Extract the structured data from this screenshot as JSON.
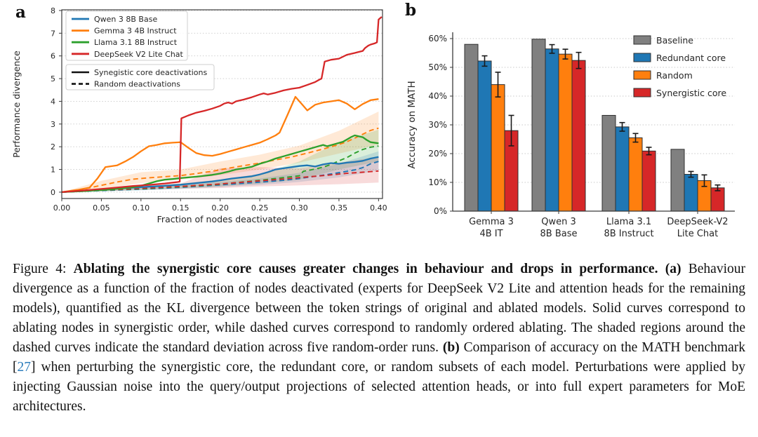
{
  "figure": {
    "panel_a_letter": "a",
    "panel_b_letter": "b"
  },
  "colors": {
    "blue": "#1f77b4",
    "orange": "#ff7f0e",
    "green": "#2ca02c",
    "red": "#d62728",
    "gray": "#808080",
    "grid": "#c9c9c9",
    "spine": "#3b3b3b",
    "tick_text": "#262626",
    "citation": "#2e7ebc",
    "band_opacity": 0.17
  },
  "chart_data": [
    {
      "type": "line",
      "panel": "a",
      "xlabel": "Fraction of nodes deactivated",
      "ylabel": "Performance divergence",
      "xlim": [
        0,
        0.405
      ],
      "ylim": [
        -0.28,
        8.03
      ],
      "xticks": [
        0.0,
        0.05,
        0.1,
        0.15,
        0.2,
        0.25,
        0.3,
        0.35,
        0.4
      ],
      "yticks": [
        0,
        1,
        2,
        3,
        4,
        5,
        6,
        7,
        8
      ],
      "grid": "horizontal-dotted",
      "legend_models": [
        {
          "label": "Qwen 3 8B Base",
          "color": "#1f77b4"
        },
        {
          "label": "Gemma 3 4B Instruct",
          "color": "#ff7f0e"
        },
        {
          "label": "Llama 3.1 8B Instruct",
          "color": "#2ca02c"
        },
        {
          "label": "DeepSeek V2 Lite Chat",
          "color": "#d62728"
        }
      ],
      "legend_styles": [
        {
          "label": "Synegistic core deactivations",
          "dash": false
        },
        {
          "label": "Random deactivations",
          "dash": true
        }
      ],
      "bands": [
        {
          "name": "gemma-random-band",
          "color": "#ff7f0e",
          "x": [
            0,
            0.05,
            0.1,
            0.15,
            0.2,
            0.25,
            0.3,
            0.35,
            0.4
          ],
          "lo": [
            0,
            0.15,
            0.4,
            0.55,
            0.75,
            1.0,
            1.3,
            1.7,
            2.1
          ],
          "hi": [
            0,
            0.5,
            0.88,
            1.0,
            1.35,
            1.65,
            2.05,
            2.7,
            3.55
          ]
        },
        {
          "name": "llama-random-band",
          "color": "#2ca02c",
          "x": [
            0,
            0.05,
            0.1,
            0.15,
            0.2,
            0.25,
            0.3,
            0.35,
            0.4
          ],
          "lo": [
            0,
            0.04,
            0.1,
            0.17,
            0.25,
            0.38,
            0.55,
            1.0,
            1.35
          ],
          "hi": [
            0,
            0.15,
            0.25,
            0.38,
            0.55,
            0.8,
            1.35,
            2.2,
            2.75
          ]
        },
        {
          "name": "qwen-random-band",
          "color": "#1f77b4",
          "x": [
            0,
            0.05,
            0.1,
            0.15,
            0.2,
            0.25,
            0.3,
            0.35,
            0.4
          ],
          "lo": [
            0,
            0.03,
            0.08,
            0.14,
            0.22,
            0.32,
            0.45,
            0.65,
            0.95
          ],
          "hi": [
            0,
            0.12,
            0.2,
            0.3,
            0.45,
            0.6,
            0.85,
            1.25,
            1.8
          ]
        },
        {
          "name": "deepseek-random-band",
          "color": "#d62728",
          "x": [
            0,
            0.05,
            0.1,
            0.15,
            0.2,
            0.25,
            0.3,
            0.35,
            0.4
          ],
          "lo": [
            0,
            0.04,
            0.1,
            0.15,
            0.18,
            0.25,
            0.3,
            0.35,
            0.42
          ],
          "hi": [
            0,
            0.16,
            0.28,
            0.38,
            1.05,
            1.1,
            1.05,
            1.3,
            1.55
          ]
        }
      ],
      "series": [
        {
          "name": "Qwen 3 8B Base random",
          "slug": "qwen-3-8b-base-random",
          "color": "#1f77b4",
          "dash": true,
          "x": [
            0,
            0.05,
            0.1,
            0.15,
            0.2,
            0.25,
            0.28,
            0.3,
            0.32,
            0.34,
            0.36,
            0.37,
            0.38,
            0.39,
            0.4
          ],
          "y": [
            0,
            0.07,
            0.13,
            0.21,
            0.32,
            0.44,
            0.52,
            0.6,
            0.7,
            0.8,
            0.92,
            0.98,
            1.08,
            1.25,
            1.35
          ]
        },
        {
          "name": "Gemma 3 4B Instruct random",
          "slug": "gemma-3-4b-instruct-random",
          "color": "#ff7f0e",
          "dash": true,
          "x": [
            0,
            0.03,
            0.05,
            0.07,
            0.09,
            0.11,
            0.13,
            0.15,
            0.17,
            0.19,
            0.21,
            0.23,
            0.25,
            0.27,
            0.29,
            0.31,
            0.33,
            0.35,
            0.36,
            0.37,
            0.38,
            0.39,
            0.4
          ],
          "y": [
            0,
            0.15,
            0.3,
            0.45,
            0.57,
            0.63,
            0.68,
            0.73,
            0.82,
            0.92,
            1.05,
            1.17,
            1.28,
            1.42,
            1.55,
            1.72,
            1.9,
            2.1,
            2.22,
            2.38,
            2.55,
            2.72,
            2.82
          ]
        },
        {
          "name": "Llama 3.1 8B Instruct random",
          "slug": "llama-3-1-8b-instruct-random",
          "color": "#2ca02c",
          "dash": true,
          "x": [
            0,
            0.05,
            0.1,
            0.15,
            0.18,
            0.2,
            0.22,
            0.25,
            0.27,
            0.29,
            0.3,
            0.305,
            0.31,
            0.32,
            0.33,
            0.34,
            0.35,
            0.36,
            0.37,
            0.38,
            0.39,
            0.4
          ],
          "y": [
            0,
            0.08,
            0.15,
            0.24,
            0.3,
            0.35,
            0.42,
            0.52,
            0.6,
            0.68,
            0.72,
            0.92,
            0.95,
            1.02,
            1.1,
            1.22,
            1.38,
            1.52,
            1.72,
            1.88,
            1.98,
            2.03
          ]
        },
        {
          "name": "DeepSeek V2 Lite Chat random",
          "slug": "deepseek-v2-lite-chat-random",
          "color": "#d62728",
          "dash": true,
          "x": [
            0,
            0.05,
            0.1,
            0.15,
            0.2,
            0.25,
            0.28,
            0.3,
            0.32,
            0.34,
            0.36,
            0.38,
            0.4
          ],
          "y": [
            0,
            0.09,
            0.17,
            0.25,
            0.36,
            0.5,
            0.58,
            0.64,
            0.7,
            0.76,
            0.83,
            0.88,
            0.93
          ]
        },
        {
          "name": "Qwen 3 8B Base synergistic",
          "slug": "qwen-3-8b-base-synergistic",
          "color": "#1f77b4",
          "dash": false,
          "x": [
            0,
            0.02,
            0.05,
            0.08,
            0.1,
            0.13,
            0.15,
            0.17,
            0.19,
            0.2,
            0.215,
            0.22,
            0.24,
            0.25,
            0.26,
            0.27,
            0.28,
            0.29,
            0.3,
            0.31,
            0.32,
            0.33,
            0.34,
            0.35,
            0.36,
            0.37,
            0.38,
            0.39,
            0.4
          ],
          "y": [
            0,
            0.05,
            0.12,
            0.18,
            0.22,
            0.28,
            0.33,
            0.4,
            0.47,
            0.52,
            0.6,
            0.62,
            0.7,
            0.78,
            0.88,
            1.0,
            1.05,
            1.1,
            1.15,
            1.18,
            1.13,
            1.22,
            1.28,
            1.25,
            1.3,
            1.33,
            1.38,
            1.48,
            1.55
          ]
        },
        {
          "name": "Llama 3.1 8B Instruct synergistic",
          "slug": "llama-3-1-8b-instruct-synergistic",
          "color": "#2ca02c",
          "dash": false,
          "x": [
            0,
            0.03,
            0.06,
            0.09,
            0.1,
            0.11,
            0.12,
            0.13,
            0.14,
            0.15,
            0.16,
            0.17,
            0.18,
            0.19,
            0.2,
            0.21,
            0.22,
            0.23,
            0.24,
            0.25,
            0.26,
            0.27,
            0.28,
            0.29,
            0.3,
            0.31,
            0.32,
            0.33,
            0.335,
            0.345,
            0.355,
            0.365,
            0.37,
            0.38,
            0.385,
            0.39,
            0.4
          ],
          "y": [
            0,
            0.05,
            0.12,
            0.22,
            0.28,
            0.38,
            0.48,
            0.55,
            0.58,
            0.62,
            0.65,
            0.68,
            0.72,
            0.76,
            0.82,
            0.9,
            1.0,
            1.05,
            1.12,
            1.25,
            1.35,
            1.48,
            1.58,
            1.68,
            1.78,
            1.88,
            1.98,
            2.08,
            2.02,
            2.12,
            2.22,
            2.42,
            2.5,
            2.42,
            2.3,
            2.2,
            2.15
          ]
        },
        {
          "name": "Gemma 3 4B Instruct synergistic",
          "slug": "gemma-3-4b-instruct-synergistic",
          "color": "#ff7f0e",
          "dash": false,
          "x": [
            0,
            0.02,
            0.035,
            0.045,
            0.055,
            0.06,
            0.07,
            0.08,
            0.09,
            0.1,
            0.11,
            0.12,
            0.13,
            0.14,
            0.15,
            0.16,
            0.17,
            0.18,
            0.19,
            0.2,
            0.21,
            0.22,
            0.23,
            0.24,
            0.25,
            0.26,
            0.27,
            0.275,
            0.285,
            0.295,
            0.305,
            0.31,
            0.32,
            0.33,
            0.34,
            0.35,
            0.36,
            0.37,
            0.38,
            0.39,
            0.4
          ],
          "y": [
            0,
            0.1,
            0.2,
            0.6,
            1.1,
            1.13,
            1.18,
            1.35,
            1.55,
            1.8,
            2.02,
            2.08,
            2.15,
            2.18,
            2.2,
            1.95,
            1.72,
            1.63,
            1.6,
            1.68,
            1.78,
            1.88,
            1.98,
            2.08,
            2.18,
            2.33,
            2.5,
            2.62,
            3.4,
            4.2,
            3.8,
            3.6,
            3.85,
            3.95,
            4.0,
            4.05,
            3.9,
            3.65,
            3.88,
            4.05,
            4.1
          ]
        },
        {
          "name": "DeepSeek V2 Lite Chat synergistic",
          "slug": "deepseek-v2-lite-chat-synergistic",
          "color": "#d62728",
          "dash": false,
          "x": [
            0,
            0.03,
            0.06,
            0.09,
            0.11,
            0.13,
            0.145,
            0.149,
            0.151,
            0.16,
            0.17,
            0.18,
            0.19,
            0.2,
            0.205,
            0.21,
            0.215,
            0.22,
            0.23,
            0.24,
            0.25,
            0.255,
            0.26,
            0.27,
            0.28,
            0.29,
            0.3,
            0.31,
            0.32,
            0.325,
            0.328,
            0.332,
            0.34,
            0.35,
            0.36,
            0.37,
            0.38,
            0.383,
            0.387,
            0.39,
            0.395,
            0.398,
            0.4,
            0.404
          ],
          "y": [
            0,
            0.08,
            0.17,
            0.27,
            0.32,
            0.38,
            0.44,
            0.46,
            3.25,
            3.38,
            3.5,
            3.58,
            3.68,
            3.8,
            3.9,
            3.95,
            3.9,
            4.0,
            4.08,
            4.18,
            4.3,
            4.35,
            4.3,
            4.38,
            4.48,
            4.55,
            4.6,
            4.72,
            4.85,
            4.95,
            5.0,
            5.75,
            5.83,
            5.88,
            6.05,
            6.13,
            6.22,
            6.35,
            6.45,
            6.5,
            6.55,
            6.6,
            7.6,
            7.72
          ]
        }
      ]
    },
    {
      "type": "bar",
      "panel": "b",
      "ylabel": "Accuracy on MATH",
      "ylim": [
        0,
        62
      ],
      "yticks": [
        0,
        10,
        20,
        30,
        40,
        50,
        60
      ],
      "ytick_suffix": "%",
      "grid": "horizontal-dotted",
      "categories": [
        [
          "Gemma 3",
          "4B IT"
        ],
        [
          "Qwen 3",
          "8B Base"
        ],
        [
          "Llama 3.1",
          "8B Instruct"
        ],
        [
          "DeepSeek-V2",
          "Lite Chat"
        ]
      ],
      "series": [
        {
          "name": "Baseline",
          "slug": "baseline",
          "color": "#808080",
          "values": [
            58.0,
            59.8,
            33.3,
            21.5
          ],
          "errors": [
            null,
            null,
            null,
            null
          ]
        },
        {
          "name": "Redundant core",
          "slug": "redundant-core",
          "color": "#1f77b4",
          "values": [
            52.2,
            56.4,
            29.3,
            12.8
          ],
          "errors": [
            1.8,
            1.5,
            1.5,
            1.0
          ]
        },
        {
          "name": "Random",
          "slug": "random",
          "color": "#ff7f0e",
          "values": [
            44.0,
            54.6,
            25.5,
            10.6
          ],
          "errors": [
            4.3,
            1.7,
            1.5,
            2.0
          ]
        },
        {
          "name": "Synergistic core",
          "slug": "synergistic-core",
          "color": "#d62728",
          "values": [
            28.0,
            52.4,
            20.9,
            8.1
          ],
          "errors": [
            5.3,
            2.8,
            1.3,
            1.0
          ]
        }
      ],
      "legend_position": "top-right"
    }
  ],
  "caption": {
    "segments": [
      {
        "text": "Figure 4: ",
        "style": "normal"
      },
      {
        "text": "Ablating the synergistic core causes greater changes in behaviour and drops in performance. (a)",
        "style": "bold"
      },
      {
        "text": " Behaviour divergence as a function of the fraction of nodes deactivated (experts for DeepSeek V2 Lite and attention heads for the remaining models), quantified as the KL divergence between the token strings of original and ablated models. Solid curves correspond to ablating nodes in synergistic order, while dashed curves correspond to randomly ordered ablating. The shaded regions around the dashed curves indicate the standard deviation across five random-order runs. ",
        "style": "normal"
      },
      {
        "text": "(b)",
        "style": "bold"
      },
      {
        "text": " Comparison of accuracy on the MATH benchmark [",
        "style": "normal"
      },
      {
        "text": "27",
        "style": "cite"
      },
      {
        "text": "] when perturbing the synergistic core, the redundant core, or random subsets of each model. Perturbations were applied by injecting Gaussian noise into the query/output projections of selected attention heads, or into full expert parameters for MoE architectures.",
        "style": "normal"
      }
    ]
  }
}
